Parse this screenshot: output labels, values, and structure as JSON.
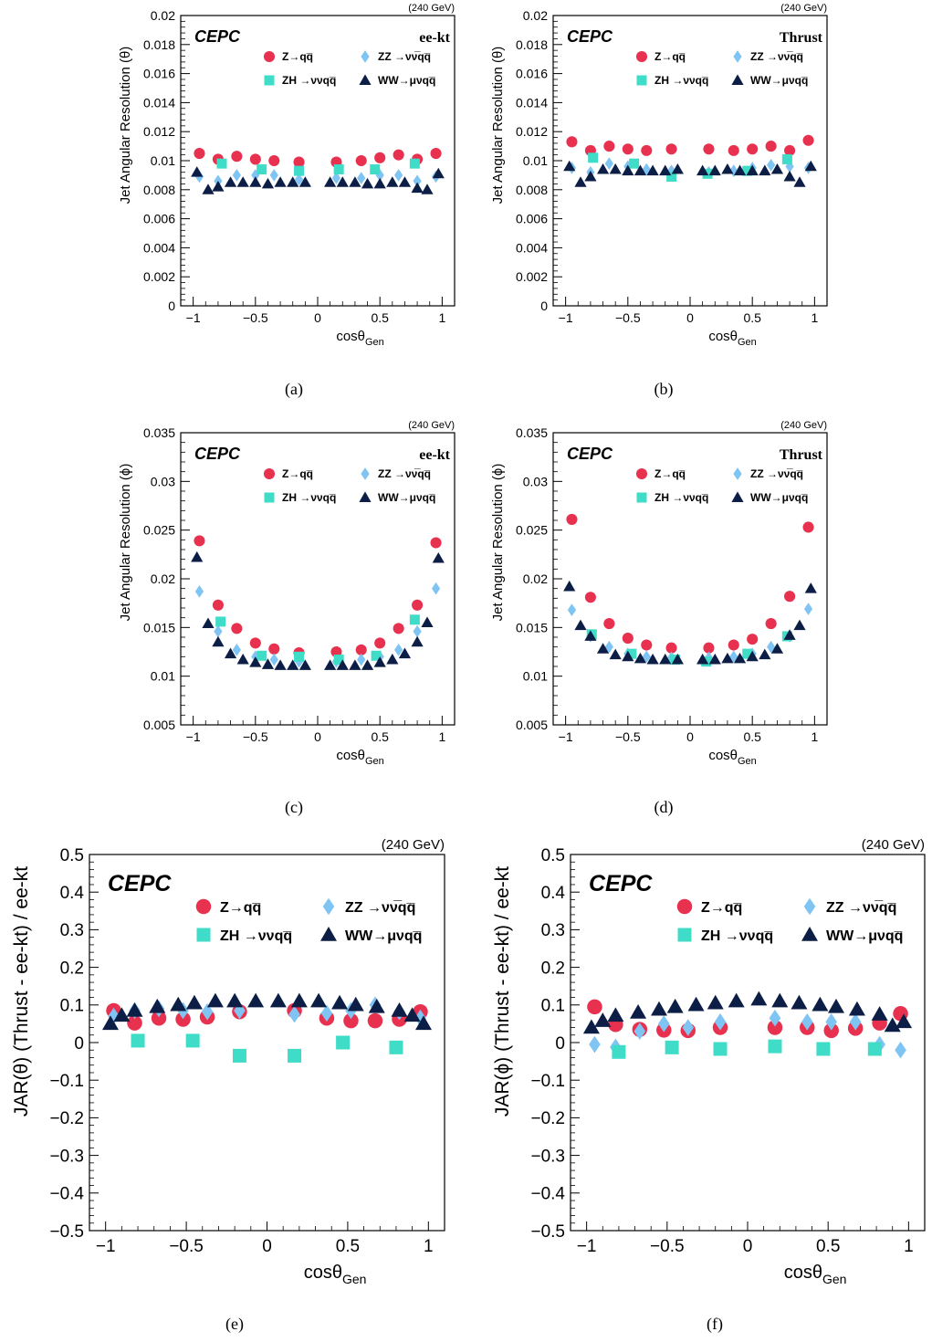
{
  "colors": {
    "zqq": "#e8304f",
    "zz": "#7fc4f2",
    "zh": "#3fdcc8",
    "ww": "#0c1e45"
  },
  "legend_entries": [
    {
      "key": "zqq",
      "label": "Z→qq̅",
      "marker": "circle"
    },
    {
      "key": "zz",
      "label": "ZZ →νν̅qq̅",
      "marker": "diamond"
    },
    {
      "key": "zh",
      "label": "ZH →ννqq̅",
      "marker": "square"
    },
    {
      "key": "ww",
      "label": "WW→μνqq̅",
      "marker": "triangle"
    }
  ],
  "chart_data": [
    {
      "panel": "(a)",
      "type": "scatter",
      "brand": "CEPC",
      "algo": "ee-kt",
      "energy": "(240 GeV)",
      "xlabel": "cosθ",
      "xlabel_sub": "Gen",
      "ylabel": "Jet Angular Resolution (θ)",
      "xlim": [
        -1.1,
        1.1
      ],
      "ylim": [
        0,
        0.02
      ],
      "xticks": [
        -1,
        -0.5,
        0,
        0.5,
        1
      ],
      "xticklabels": [
        "−1",
        "−0.5",
        "0",
        "0.5",
        "1"
      ],
      "yticks": [
        0,
        0.002,
        0.004,
        0.006,
        0.008,
        0.01,
        0.012,
        0.014,
        0.016,
        0.018,
        0.02
      ],
      "yticklabels": [
        "0",
        "0.002",
        "0.004",
        "0.006",
        "0.008",
        "0.01",
        "0.012",
        "0.014",
        "0.016",
        "0.018",
        "0.02"
      ],
      "series": [
        {
          "key": "zqq",
          "x": [
            -0.95,
            -0.8,
            -0.65,
            -0.5,
            -0.35,
            -0.15,
            0.15,
            0.35,
            0.5,
            0.65,
            0.8,
            0.95
          ],
          "y": [
            0.0105,
            0.0101,
            0.0103,
            0.0101,
            0.01,
            0.0099,
            0.0099,
            0.01,
            0.0102,
            0.0104,
            0.0101,
            0.0105
          ]
        },
        {
          "key": "zz",
          "x": [
            -0.95,
            -0.8,
            -0.65,
            -0.5,
            -0.35,
            -0.15,
            0.15,
            0.35,
            0.5,
            0.65,
            0.8,
            0.95
          ],
          "y": [
            0.0089,
            0.0086,
            0.009,
            0.009,
            0.009,
            0.0087,
            0.0088,
            0.0088,
            0.009,
            0.009,
            0.0086,
            0.0089
          ]
        },
        {
          "key": "zh",
          "x": [
            -0.77,
            -0.45,
            -0.15,
            0.17,
            0.46,
            0.78
          ],
          "y": [
            0.0098,
            0.0094,
            0.0093,
            0.0094,
            0.0094,
            0.0098
          ]
        },
        {
          "key": "ww",
          "x": [
            -0.97,
            -0.88,
            -0.8,
            -0.7,
            -0.6,
            -0.5,
            -0.4,
            -0.3,
            -0.2,
            -0.1,
            0.1,
            0.2,
            0.3,
            0.4,
            0.5,
            0.6,
            0.7,
            0.8,
            0.88,
            0.97
          ],
          "y": [
            0.0092,
            0.008,
            0.0082,
            0.0085,
            0.0085,
            0.0085,
            0.0084,
            0.0085,
            0.0085,
            0.0085,
            0.0085,
            0.0085,
            0.0085,
            0.0084,
            0.0084,
            0.0085,
            0.0085,
            0.0081,
            0.008,
            0.0091
          ]
        }
      ]
    },
    {
      "panel": "(b)",
      "type": "scatter",
      "brand": "CEPC",
      "algo": "Thrust",
      "energy": "(240 GeV)",
      "xlabel": "cosθ",
      "xlabel_sub": "Gen",
      "ylabel": "Jet Angular Resolution (θ)",
      "xlim": [
        -1.1,
        1.1
      ],
      "ylim": [
        0,
        0.02
      ],
      "xticks": [
        -1,
        -0.5,
        0,
        0.5,
        1
      ],
      "xticklabels": [
        "−1",
        "−0.5",
        "0",
        "0.5",
        "1"
      ],
      "yticks": [
        0,
        0.002,
        0.004,
        0.006,
        0.008,
        0.01,
        0.012,
        0.014,
        0.016,
        0.018,
        0.02
      ],
      "yticklabels": [
        "0",
        "0.002",
        "0.004",
        "0.006",
        "0.008",
        "0.01",
        "0.012",
        "0.014",
        "0.016",
        "0.018",
        "0.02"
      ],
      "series": [
        {
          "key": "zqq",
          "x": [
            -0.95,
            -0.8,
            -0.65,
            -0.5,
            -0.35,
            -0.15,
            0.15,
            0.35,
            0.5,
            0.65,
            0.8,
            0.95
          ],
          "y": [
            0.0113,
            0.0107,
            0.011,
            0.0108,
            0.0107,
            0.0108,
            0.0108,
            0.0107,
            0.0108,
            0.011,
            0.0107,
            0.0114
          ]
        },
        {
          "key": "zz",
          "x": [
            -0.95,
            -0.8,
            -0.65,
            -0.5,
            -0.35,
            -0.15,
            0.15,
            0.35,
            0.5,
            0.65,
            0.8,
            0.95
          ],
          "y": [
            0.0095,
            0.0092,
            0.0098,
            0.0096,
            0.0094,
            0.0093,
            0.0092,
            0.0093,
            0.0095,
            0.0097,
            0.0096,
            0.0095
          ]
        },
        {
          "key": "zh",
          "x": [
            -0.78,
            -0.45,
            -0.15,
            0.14,
            0.46,
            0.78
          ],
          "y": [
            0.0102,
            0.0098,
            0.0089,
            0.0091,
            0.0093,
            0.0101
          ]
        },
        {
          "key": "ww",
          "x": [
            -0.97,
            -0.88,
            -0.8,
            -0.7,
            -0.6,
            -0.5,
            -0.4,
            -0.3,
            -0.2,
            -0.1,
            0.1,
            0.2,
            0.3,
            0.4,
            0.5,
            0.6,
            0.7,
            0.8,
            0.88,
            0.97
          ],
          "y": [
            0.0096,
            0.0085,
            0.0089,
            0.0094,
            0.0094,
            0.0093,
            0.0093,
            0.0093,
            0.0093,
            0.0094,
            0.0093,
            0.0093,
            0.0094,
            0.0093,
            0.0093,
            0.0093,
            0.0094,
            0.0089,
            0.0085,
            0.0096
          ]
        }
      ]
    },
    {
      "panel": "(c)",
      "type": "scatter",
      "brand": "CEPC",
      "algo": "ee-kt",
      "energy": "(240 GeV)",
      "xlabel": "cosθ",
      "xlabel_sub": "Gen",
      "ylabel": "Jet Angular Resolution (ϕ)",
      "xlim": [
        -1.1,
        1.1
      ],
      "ylim": [
        0.005,
        0.035
      ],
      "xticks": [
        -1,
        -0.5,
        0,
        0.5,
        1
      ],
      "xticklabels": [
        "−1",
        "−0.5",
        "0",
        "0.5",
        "1"
      ],
      "yticks": [
        0.005,
        0.01,
        0.015,
        0.02,
        0.025,
        0.03,
        0.035
      ],
      "yticklabels": [
        "0.005",
        "0.01",
        "0.015",
        "0.02",
        "0.025",
        "0.03",
        "0.035"
      ],
      "series": [
        {
          "key": "zqq",
          "x": [
            -0.95,
            -0.8,
            -0.65,
            -0.5,
            -0.35,
            -0.15,
            0.15,
            0.35,
            0.5,
            0.65,
            0.8,
            0.95
          ],
          "y": [
            0.0239,
            0.0173,
            0.0149,
            0.0134,
            0.0128,
            0.0124,
            0.0125,
            0.0127,
            0.0134,
            0.0149,
            0.0173,
            0.0237
          ]
        },
        {
          "key": "zz",
          "x": [
            -0.95,
            -0.8,
            -0.65,
            -0.5,
            -0.35,
            -0.15,
            0.15,
            0.35,
            0.5,
            0.65,
            0.8,
            0.95
          ],
          "y": [
            0.0187,
            0.0146,
            0.0127,
            0.012,
            0.0117,
            0.0115,
            0.0115,
            0.0117,
            0.012,
            0.0127,
            0.0146,
            0.019
          ]
        },
        {
          "key": "zh",
          "x": [
            -0.78,
            -0.45,
            -0.15,
            0.17,
            0.47,
            0.78
          ],
          "y": [
            0.0156,
            0.0121,
            0.012,
            0.0117,
            0.0121,
            0.0158
          ]
        },
        {
          "key": "ww",
          "x": [
            -0.97,
            -0.88,
            -0.8,
            -0.7,
            -0.6,
            -0.5,
            -0.4,
            -0.3,
            -0.2,
            -0.1,
            0.1,
            0.2,
            0.3,
            0.4,
            0.5,
            0.6,
            0.7,
            0.8,
            0.88,
            0.97
          ],
          "y": [
            0.0222,
            0.0154,
            0.0135,
            0.0123,
            0.0117,
            0.0114,
            0.0112,
            0.0111,
            0.0111,
            0.0111,
            0.0111,
            0.0111,
            0.0111,
            0.0111,
            0.0114,
            0.0117,
            0.0123,
            0.0135,
            0.0155,
            0.0221
          ]
        }
      ]
    },
    {
      "panel": "(d)",
      "type": "scatter",
      "brand": "CEPC",
      "algo": "Thrust",
      "energy": "(240 GeV)",
      "xlabel": "cosθ",
      "xlabel_sub": "Gen",
      "ylabel": "Jet Angular Resolution (ϕ)",
      "xlim": [
        -1.1,
        1.1
      ],
      "ylim": [
        0.005,
        0.035
      ],
      "xticks": [
        -1,
        -0.5,
        0,
        0.5,
        1
      ],
      "xticklabels": [
        "−1",
        "−0.5",
        "0",
        "0.5",
        "1"
      ],
      "yticks": [
        0.005,
        0.01,
        0.015,
        0.02,
        0.025,
        0.03,
        0.035
      ],
      "yticklabels": [
        "0.005",
        "0.01",
        "0.015",
        "0.02",
        "0.025",
        "0.03",
        "0.035"
      ],
      "series": [
        {
          "key": "zqq",
          "x": [
            -0.95,
            -0.8,
            -0.65,
            -0.5,
            -0.35,
            -0.15,
            0.15,
            0.35,
            0.5,
            0.65,
            0.8,
            0.95
          ],
          "y": [
            0.0261,
            0.0181,
            0.0154,
            0.0139,
            0.0132,
            0.0129,
            0.0129,
            0.0132,
            0.0138,
            0.0154,
            0.0182,
            0.0253
          ]
        },
        {
          "key": "zz",
          "x": [
            -0.95,
            -0.8,
            -0.65,
            -0.5,
            -0.35,
            -0.15,
            0.15,
            0.35,
            0.5,
            0.65,
            0.8,
            0.95
          ],
          "y": [
            0.0168,
            0.0141,
            0.013,
            0.0123,
            0.012,
            0.0119,
            0.0119,
            0.012,
            0.0123,
            0.013,
            0.0141,
            0.0169
          ]
        },
        {
          "key": "zh",
          "x": [
            -0.79,
            -0.47,
            -0.12,
            0.13,
            0.46,
            0.78
          ],
          "y": [
            0.0143,
            0.0123,
            0.0117,
            0.0115,
            0.0123,
            0.0141
          ]
        },
        {
          "key": "ww",
          "x": [
            -0.97,
            -0.88,
            -0.8,
            -0.7,
            -0.6,
            -0.5,
            -0.4,
            -0.3,
            -0.2,
            -0.1,
            0.1,
            0.2,
            0.3,
            0.4,
            0.5,
            0.6,
            0.7,
            0.8,
            0.88,
            0.97
          ],
          "y": [
            0.0192,
            0.0152,
            0.0141,
            0.0128,
            0.0122,
            0.012,
            0.0118,
            0.0117,
            0.0117,
            0.0117,
            0.0117,
            0.0117,
            0.0118,
            0.0118,
            0.012,
            0.0122,
            0.0128,
            0.0142,
            0.0152,
            0.019
          ]
        }
      ]
    },
    {
      "panel": "(e)",
      "type": "scatter",
      "brand": "CEPC",
      "algo": "",
      "energy": "(240 GeV)",
      "xlabel": "cosθ",
      "xlabel_sub": "Gen",
      "ylabel": "JAR(θ) (Thrust - ee-kt) / ee-kt",
      "xlim": [
        -1.1,
        1.1
      ],
      "ylim": [
        -0.5,
        0.5
      ],
      "xticks": [
        -1,
        -0.5,
        0,
        0.5,
        1
      ],
      "xticklabels": [
        "−1",
        "−0.5",
        "0",
        "0.5",
        "1"
      ],
      "yticks": [
        -0.5,
        -0.4,
        -0.3,
        -0.2,
        -0.1,
        0,
        0.1,
        0.2,
        0.3,
        0.4,
        0.5
      ],
      "yticklabels": [
        "−0.5",
        "−0.4",
        "−0.3",
        "−0.2",
        "−0.1",
        "0",
        "0.1",
        "0.2",
        "0.3",
        "0.4",
        "0.5"
      ],
      "series": [
        {
          "key": "zqq",
          "x": [
            -0.95,
            -0.82,
            -0.67,
            -0.52,
            -0.37,
            -0.17,
            0.17,
            0.37,
            0.52,
            0.67,
            0.82,
            0.95
          ],
          "y": [
            0.085,
            0.052,
            0.065,
            0.062,
            0.068,
            0.082,
            0.085,
            0.065,
            0.058,
            0.058,
            0.062,
            0.082
          ]
        },
        {
          "key": "zz",
          "x": [
            -0.95,
            -0.82,
            -0.67,
            -0.52,
            -0.37,
            -0.17,
            0.17,
            0.37,
            0.52,
            0.67,
            0.82,
            0.95
          ],
          "y": [
            0.07,
            0.085,
            0.09,
            0.085,
            0.082,
            0.085,
            0.075,
            0.078,
            0.085,
            0.1,
            0.082,
            0.065
          ]
        },
        {
          "key": "zh",
          "x": [
            -0.8,
            -0.46,
            -0.17,
            0.17,
            0.47,
            0.8
          ],
          "y": [
            0.005,
            0.005,
            -0.035,
            -0.035,
            0.0,
            -0.013
          ]
        },
        {
          "key": "ww",
          "x": [
            -0.97,
            -0.9,
            -0.82,
            -0.68,
            -0.55,
            -0.45,
            -0.32,
            -0.2,
            -0.07,
            0.07,
            0.2,
            0.32,
            0.45,
            0.55,
            0.68,
            0.82,
            0.9,
            0.97
          ],
          "y": [
            0.05,
            0.072,
            0.085,
            0.095,
            0.1,
            0.105,
            0.11,
            0.11,
            0.11,
            0.11,
            0.11,
            0.11,
            0.105,
            0.1,
            0.095,
            0.085,
            0.072,
            0.05
          ]
        }
      ]
    },
    {
      "panel": "(f)",
      "type": "scatter",
      "brand": "CEPC",
      "algo": "",
      "energy": "(240 GeV)",
      "xlabel": "cosθ",
      "xlabel_sub": "Gen",
      "ylabel": "JAR(ϕ) (Thrust - ee-kt) / ee-kt",
      "xlim": [
        -1.1,
        1.1
      ],
      "ylim": [
        -0.5,
        0.5
      ],
      "xticks": [
        -1,
        -0.5,
        0,
        0.5,
        1
      ],
      "xticklabels": [
        "−1",
        "−0.5",
        "0",
        "0.5",
        "1"
      ],
      "yticks": [
        -0.5,
        -0.4,
        -0.3,
        -0.2,
        -0.1,
        0,
        0.1,
        0.2,
        0.3,
        0.4,
        0.5
      ],
      "yticklabels": [
        "−0.5",
        "−0.4",
        "−0.3",
        "−0.2",
        "−0.1",
        "0",
        "0.1",
        "0.2",
        "0.3",
        "0.4",
        "0.5"
      ],
      "series": [
        {
          "key": "zqq",
          "x": [
            -0.95,
            -0.82,
            -0.67,
            -0.52,
            -0.37,
            -0.17,
            0.17,
            0.37,
            0.52,
            0.67,
            0.82,
            0.95
          ],
          "y": [
            0.095,
            0.048,
            0.035,
            0.033,
            0.032,
            0.04,
            0.04,
            0.04,
            0.032,
            0.038,
            0.052,
            0.077
          ]
        },
        {
          "key": "zz",
          "x": [
            -0.95,
            -0.82,
            -0.67,
            -0.52,
            -0.37,
            -0.17,
            0.17,
            0.37,
            0.52,
            0.67,
            0.82,
            0.95
          ],
          "y": [
            -0.005,
            -0.012,
            0.03,
            0.05,
            0.04,
            0.055,
            0.065,
            0.055,
            0.055,
            0.055,
            -0.005,
            -0.02
          ]
        },
        {
          "key": "zh",
          "x": [
            -0.8,
            -0.47,
            -0.17,
            0.17,
            0.47,
            0.79
          ],
          "y": [
            -0.025,
            -0.013,
            -0.017,
            -0.01,
            -0.017,
            -0.017
          ]
        },
        {
          "key": "ww",
          "x": [
            -0.97,
            -0.9,
            -0.82,
            -0.68,
            -0.55,
            -0.45,
            -0.32,
            -0.2,
            -0.07,
            0.07,
            0.2,
            0.32,
            0.45,
            0.55,
            0.68,
            0.82,
            0.9,
            0.97
          ],
          "y": [
            0.04,
            0.058,
            0.072,
            0.08,
            0.088,
            0.095,
            0.1,
            0.105,
            0.11,
            0.115,
            0.11,
            0.105,
            0.1,
            0.095,
            0.088,
            0.075,
            0.045,
            0.055
          ]
        }
      ]
    }
  ]
}
